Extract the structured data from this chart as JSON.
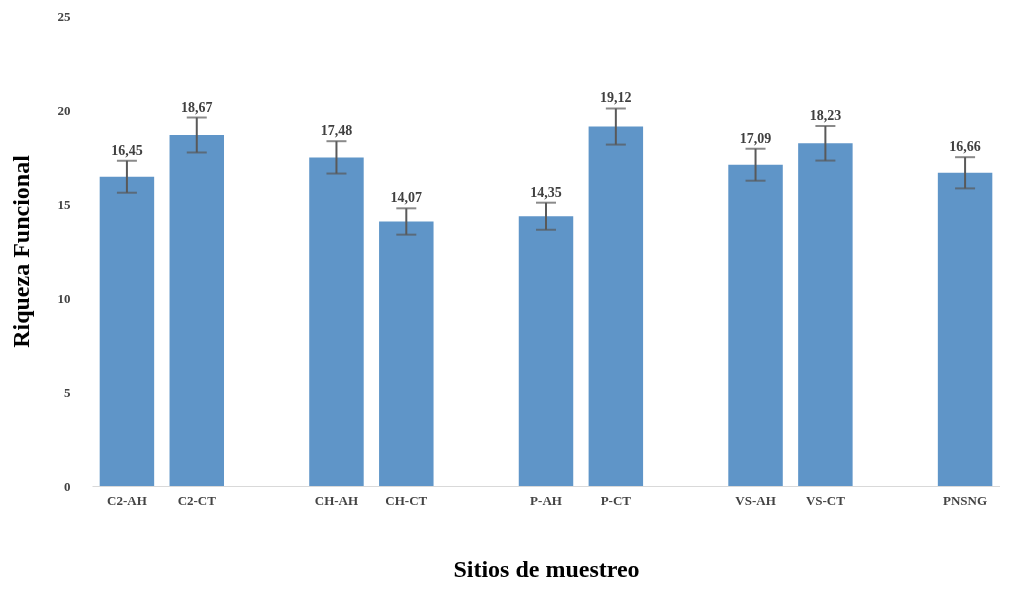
{
  "chart_data": {
    "type": "bar",
    "xlabel": "Sitios de muestreo",
    "ylabel": "Riqueza Funcional",
    "categories": [
      "C2-AH",
      "C2-CT",
      null,
      "CH-AH",
      "CH-CT",
      null,
      "P-AH",
      "P-CT",
      null,
      "VS-AH",
      "VS-CT",
      null,
      "PNSNG"
    ],
    "values": [
      16.45,
      18.67,
      null,
      17.48,
      14.07,
      null,
      14.35,
      19.12,
      null,
      17.09,
      18.23,
      null,
      16.66
    ],
    "value_labels": [
      "16,45",
      "18,67",
      null,
      "17,48",
      "14,07",
      null,
      "14,35",
      "19,12",
      null,
      "17,09",
      "18,23",
      null,
      "16,66"
    ],
    "errors": [
      0.85,
      0.93,
      null,
      0.86,
      0.7,
      null,
      0.72,
      0.96,
      null,
      0.85,
      0.92,
      null,
      0.83
    ],
    "color": "#5f95c8",
    "ylim": [
      0,
      25
    ],
    "yticks": [
      0,
      5,
      10,
      15,
      20,
      25
    ],
    "grid": false
  }
}
